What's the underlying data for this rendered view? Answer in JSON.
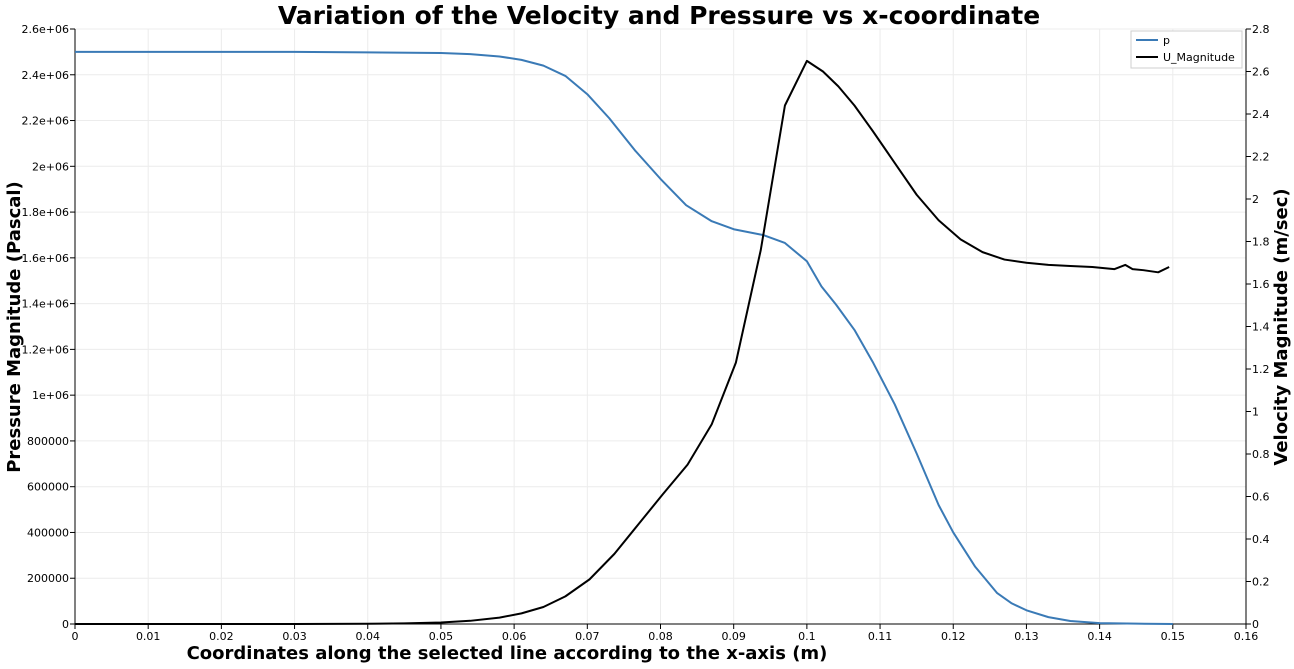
{
  "chart_data": {
    "type": "line",
    "title": "Variation of the Velocity and Pressure vs x-coordinate",
    "xlabel": "Coordinates along the selected line according to the x-axis (m)",
    "ylabel_left": "Pressure Magnitude (Pascal)",
    "ylabel_right": "Velocity Magnitude (m/sec)",
    "xlim": [
      0,
      0.16
    ],
    "ylim_left": [
      0,
      2600000
    ],
    "ylim_right": [
      0,
      2.8
    ],
    "x_ticks": [
      "0",
      "0.01",
      "0.02",
      "0.03",
      "0.04",
      "0.05",
      "0.06",
      "0.07",
      "0.08",
      "0.09",
      "0.1",
      "0.11",
      "0.12",
      "0.13",
      "0.14",
      "0.15",
      "0.16"
    ],
    "y_left_ticks": [
      "0",
      "200000",
      "400000",
      "600000",
      "800000",
      "1e+06",
      "1.2e+06",
      "1.4e+06",
      "1.6e+06",
      "1.8e+06",
      "2e+06",
      "2.2e+06",
      "2.4e+06",
      "2.6e+06"
    ],
    "y_right_ticks": [
      "0",
      "0.2",
      "0.4",
      "0.6",
      "0.8",
      "1",
      "1.2",
      "1.4",
      "1.6",
      "1.8",
      "2",
      "2.2",
      "2.4",
      "2.6",
      "2.8"
    ],
    "grid": true,
    "legend_position": "top-right",
    "series": [
      {
        "name": "p",
        "axis": "left",
        "color": "#3a7ab6",
        "x": [
          0,
          0.01,
          0.02,
          0.03,
          0.04,
          0.05,
          0.054,
          0.058,
          0.061,
          0.064,
          0.067,
          0.07,
          0.073,
          0.0765,
          0.08,
          0.0835,
          0.087,
          0.09,
          0.094,
          0.097,
          0.1,
          0.102,
          0.104,
          0.1065,
          0.109,
          0.112,
          0.115,
          0.118,
          0.12,
          0.123,
          0.126,
          0.128,
          0.13,
          0.133,
          0.136,
          0.14,
          0.145,
          0.15
        ],
        "y": [
          2500000,
          2500000,
          2500000,
          2500000,
          2498000,
          2495000,
          2490000,
          2480000,
          2465000,
          2440000,
          2395000,
          2315000,
          2210000,
          2070000,
          1945000,
          1830000,
          1760000,
          1725000,
          1700000,
          1665000,
          1585000,
          1475000,
          1395000,
          1285000,
          1145000,
          960000,
          745000,
          520000,
          400000,
          250000,
          135000,
          90000,
          60000,
          30000,
          13000,
          4000,
          1500,
          0
        ]
      },
      {
        "name": "U_Magnitude",
        "axis": "right",
        "color": "#000000",
        "x": [
          0,
          0.01,
          0.02,
          0.03,
          0.04,
          0.045,
          0.05,
          0.054,
          0.058,
          0.061,
          0.064,
          0.067,
          0.0703,
          0.0737,
          0.077,
          0.0803,
          0.0837,
          0.087,
          0.0903,
          0.0937,
          0.097,
          0.1,
          0.1022,
          0.1043,
          0.1065,
          0.109,
          0.112,
          0.115,
          0.118,
          0.121,
          0.124,
          0.127,
          0.13,
          0.133,
          0.136,
          0.139,
          0.142,
          0.1435,
          0.1445,
          0.146,
          0.148,
          0.1495
        ],
        "y": [
          0,
          0,
          0,
          0,
          0.001,
          0.003,
          0.007,
          0.015,
          0.03,
          0.05,
          0.08,
          0.13,
          0.21,
          0.33,
          0.47,
          0.61,
          0.75,
          0.94,
          1.23,
          1.76,
          2.44,
          2.65,
          2.6,
          2.53,
          2.44,
          2.32,
          2.17,
          2.02,
          1.9,
          1.81,
          1.75,
          1.715,
          1.7,
          1.69,
          1.685,
          1.68,
          1.67,
          1.69,
          1.67,
          1.665,
          1.655,
          1.68
        ]
      }
    ]
  }
}
